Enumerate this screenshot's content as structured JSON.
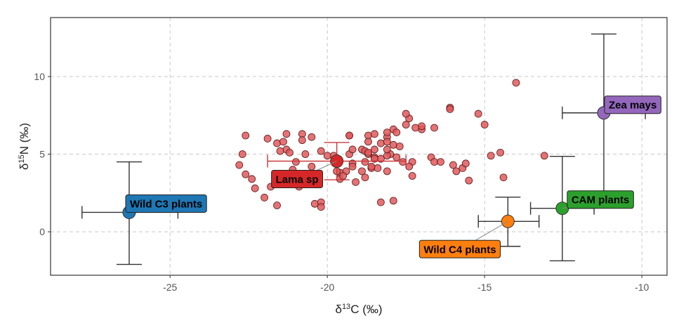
{
  "chart_data": {
    "type": "scatter",
    "xlabel": "δ13C (‰)",
    "ylabel": "δ15N (‰)",
    "xlabel_parts": {
      "delta": "δ",
      "sup": "13",
      "rest": "C (‰)"
    },
    "ylabel_parts": {
      "delta": "δ",
      "sup": "15",
      "rest": "N (‰)"
    },
    "xlim": [
      -28.8,
      -9.2
    ],
    "ylim": [
      -2.8,
      13.8
    ],
    "xticks": [
      -25,
      -20,
      -15,
      -10
    ],
    "yticks": [
      0,
      5,
      10
    ],
    "grid": true,
    "colors": {
      "points_fill": "#e0595c",
      "points_stroke": "#5a1a1a",
      "Wild C3 plants": "#1f77b4",
      "Lama sp": "#d62728",
      "Wild C4 plants": "#ff7f0e",
      "CAM plants": "#2ca02c",
      "Zea mays": "#9467bd"
    },
    "lama_points": [
      [
        -22.6,
        6.2
      ],
      [
        -22.7,
        5.0
      ],
      [
        -22.8,
        4.3
      ],
      [
        -22.6,
        3.7
      ],
      [
        -22.4,
        3.4
      ],
      [
        -22.3,
        2.8
      ],
      [
        -22.0,
        2.2
      ],
      [
        -21.8,
        2.9
      ],
      [
        -21.6,
        1.7
      ],
      [
        -21.9,
        6.0
      ],
      [
        -21.6,
        5.7
      ],
      [
        -21.4,
        5.8
      ],
      [
        -21.3,
        6.3
      ],
      [
        -21.3,
        5.3
      ],
      [
        -21.2,
        5.1
      ],
      [
        -21.5,
        5.2
      ],
      [
        -20.8,
        6.3
      ],
      [
        -20.5,
        6.1
      ],
      [
        -20.8,
        5.9
      ],
      [
        -21.0,
        4.5
      ],
      [
        -20.7,
        5.0
      ],
      [
        -20.5,
        4.2
      ],
      [
        -20.7,
        3.7
      ],
      [
        -20.2,
        5.2
      ],
      [
        -21.3,
        3.7
      ],
      [
        -21.1,
        4.0
      ],
      [
        -21.5,
        3.7
      ],
      [
        -21.2,
        3.3
      ],
      [
        -20.9,
        2.9
      ],
      [
        -20.5,
        3.1
      ],
      [
        -20.4,
        1.8
      ],
      [
        -20.2,
        1.9
      ],
      [
        -19.6,
        3.8
      ],
      [
        -19.7,
        3.9
      ],
      [
        -20.3,
        3.6
      ],
      [
        -19.8,
        4.9
      ],
      [
        -19.3,
        5.0
      ],
      [
        -19.3,
        6.2
      ],
      [
        -19.3,
        6.2
      ],
      [
        -19.2,
        5.3
      ],
      [
        -18.9,
        5.3
      ],
      [
        -18.8,
        5.2
      ],
      [
        -18.7,
        5.0
      ],
      [
        -18.7,
        5.1
      ],
      [
        -18.5,
        4.8
      ],
      [
        -18.3,
        4.7
      ],
      [
        -18.0,
        5.0
      ],
      [
        -18.1,
        4.9
      ],
      [
        -18.8,
        4.5
      ],
      [
        -18.6,
        4.1
      ],
      [
        -18.4,
        4.1
      ],
      [
        -18.1,
        3.9
      ],
      [
        -19.2,
        4.4
      ],
      [
        -19.6,
        3.4
      ],
      [
        -19.2,
        4.2
      ],
      [
        -18.9,
        3.9
      ],
      [
        -18.6,
        4.2
      ],
      [
        -18.7,
        6.2
      ],
      [
        -18.7,
        5.8
      ],
      [
        -18.5,
        6.3
      ],
      [
        -18.3,
        5.7
      ],
      [
        -18.1,
        6.1
      ],
      [
        -17.9,
        6.6
      ],
      [
        -17.8,
        6.4
      ],
      [
        -18.1,
        5.8
      ],
      [
        -17.9,
        5.6
      ],
      [
        -17.7,
        5.5
      ],
      [
        -17.4,
        7.3
      ],
      [
        -17.5,
        7.6
      ],
      [
        -17.5,
        6.9
      ],
      [
        -18.1,
        6.4
      ],
      [
        -18.5,
        5.3
      ],
      [
        -18.1,
        5.3
      ],
      [
        -17.8,
        4.8
      ],
      [
        -17.6,
        4.5
      ],
      [
        -17.3,
        4.5
      ],
      [
        -17.3,
        3.6
      ],
      [
        -17.4,
        4.2
      ],
      [
        -16.7,
        4.8
      ],
      [
        -17.0,
        6.6
      ],
      [
        -16.6,
        6.7
      ],
      [
        -16.6,
        4.5
      ],
      [
        -16.4,
        4.5
      ],
      [
        -16.1,
        8.0
      ],
      [
        -16.0,
        4.3
      ],
      [
        -16.1,
        7.9
      ],
      [
        -15.9,
        3.9
      ],
      [
        -15.7,
        4.1
      ],
      [
        -15.6,
        4.4
      ],
      [
        -15.5,
        3.3
      ],
      [
        -15.2,
        7.6
      ],
      [
        -15.0,
        6.9
      ],
      [
        -14.8,
        4.9
      ],
      [
        -14.5,
        5.1
      ],
      [
        -14.0,
        9.6
      ],
      [
        -13.1,
        4.9
      ],
      [
        -14.4,
        3.5
      ],
      [
        -18.3,
        1.9
      ],
      [
        -17.9,
        2.0
      ],
      [
        -20.2,
        1.6
      ],
      [
        -19.1,
        3.2
      ],
      [
        -18.8,
        3.5
      ],
      [
        -18.5,
        4.7
      ],
      [
        -17.0,
        6.8
      ],
      [
        -17.2,
        6.7
      ],
      [
        -19.4,
        3.9
      ],
      [
        -19.5,
        3.6
      ],
      [
        -20.0,
        4.9
      ]
    ],
    "groups": [
      {
        "name": "Wild C3 plants",
        "x": -26.3,
        "y": 1.25,
        "xmin": -27.8,
        "xmax": -24.75,
        "ymin": -2.1,
        "ymax": 4.5
      },
      {
        "name": "Lama sp",
        "x": -19.7,
        "y": 4.55,
        "xmin": -21.9,
        "xmax": -17.5,
        "ymin": 3.35,
        "ymax": 5.75
      },
      {
        "name": "Wild C4 plants",
        "x": -14.26,
        "y": 0.67,
        "xmin": -15.2,
        "xmax": -13.27,
        "ymin": -0.94,
        "ymax": 2.23
      },
      {
        "name": "CAM plants",
        "x": -12.53,
        "y": 1.51,
        "xmin": -13.54,
        "xmax": -11.52,
        "ymin": -1.87,
        "ymax": 4.86
      },
      {
        "name": "Zea mays",
        "x": -11.21,
        "y": 7.66,
        "xmin": -12.53,
        "xmax": -9.89,
        "ymin": 2.6,
        "ymax": 12.74
      }
    ]
  }
}
